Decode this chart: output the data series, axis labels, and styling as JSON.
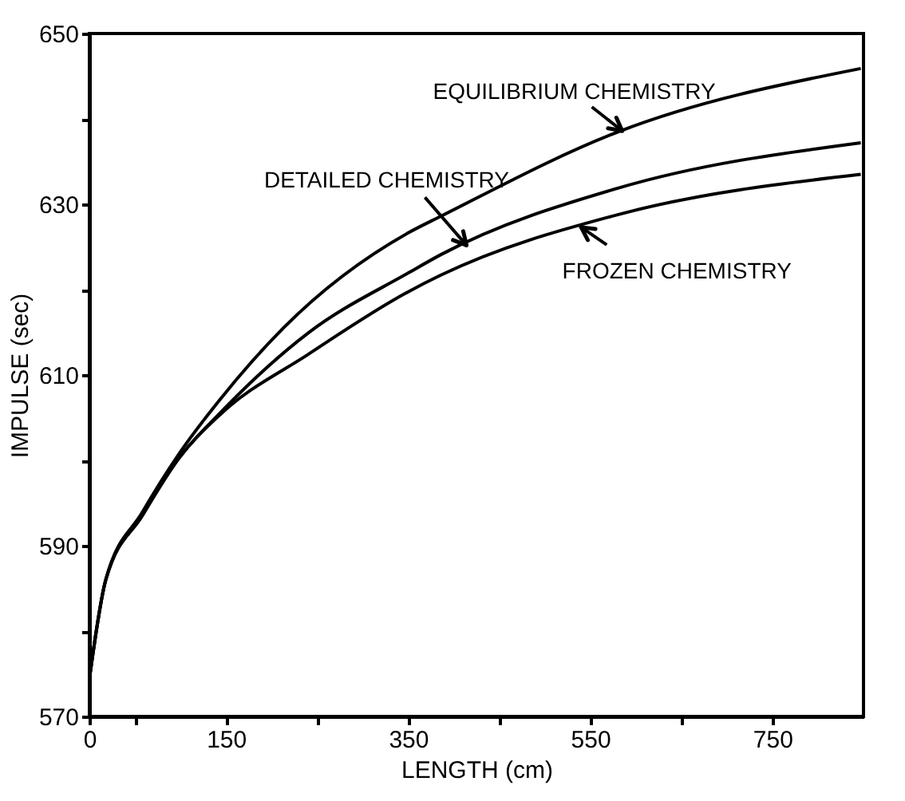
{
  "chart_data": {
    "type": "line",
    "xlabel": "LENGTH (cm)",
    "ylabel": "IMPULSE (sec)",
    "xlim": [
      0,
      850
    ],
    "xticks": [
      0,
      {
        "value": 50,
        "label": null
      },
      150,
      {
        "value": 250,
        "label": null
      },
      350,
      {
        "value": 450,
        "label": null
      },
      550,
      {
        "value": 650,
        "label": null
      },
      750
    ],
    "ylim": [
      570,
      650
    ],
    "yticks": [
      570,
      {
        "value": 580,
        "label": null
      },
      590,
      {
        "value": 600,
        "label": null
      },
      610,
      {
        "value": 620,
        "label": null
      },
      630,
      {
        "value": 640,
        "label": null
      },
      650
    ],
    "grid": false,
    "marker": "none",
    "line_style": "solid",
    "series": [
      {
        "color": "#000000",
        "x": [
          0,
          18,
          58,
          98,
          144,
          213,
          351,
          386,
          581,
          847
        ],
        "values": [
          574.4,
          586,
          593.9,
          600.7,
          607.2,
          615.5,
          626.7,
          628.6,
          638.5,
          645.9
        ]
      },
      {
        "color": "#000000",
        "x": [
          0,
          18,
          58,
          98,
          144,
          240,
          351,
          386,
          581,
          847
        ],
        "values": [
          574.4,
          586,
          593.5,
          600.2,
          605.6,
          614.9,
          622,
          624.1,
          631.9,
          637.2
        ]
      },
      {
        "color": "#000000",
        "x": [
          0,
          18,
          58,
          98,
          144,
          240,
          351,
          386,
          581,
          847
        ],
        "values": [
          574.4,
          586,
          593.5,
          600.2,
          605.4,
          612.4,
          619.8,
          621.7,
          628.8,
          633.5
        ]
      }
    ],
    "annotations": [
      {
        "text": "EQUILIBRIUM CHEMISTRY",
        "x": 585,
        "y": 638.6
      },
      {
        "text": "DETAILED CHEMISTRY",
        "x": 414,
        "y": 625.2
      },
      {
        "text": "FROZEN CHEMISTRY",
        "x": 540,
        "y": 627.3
      }
    ]
  }
}
